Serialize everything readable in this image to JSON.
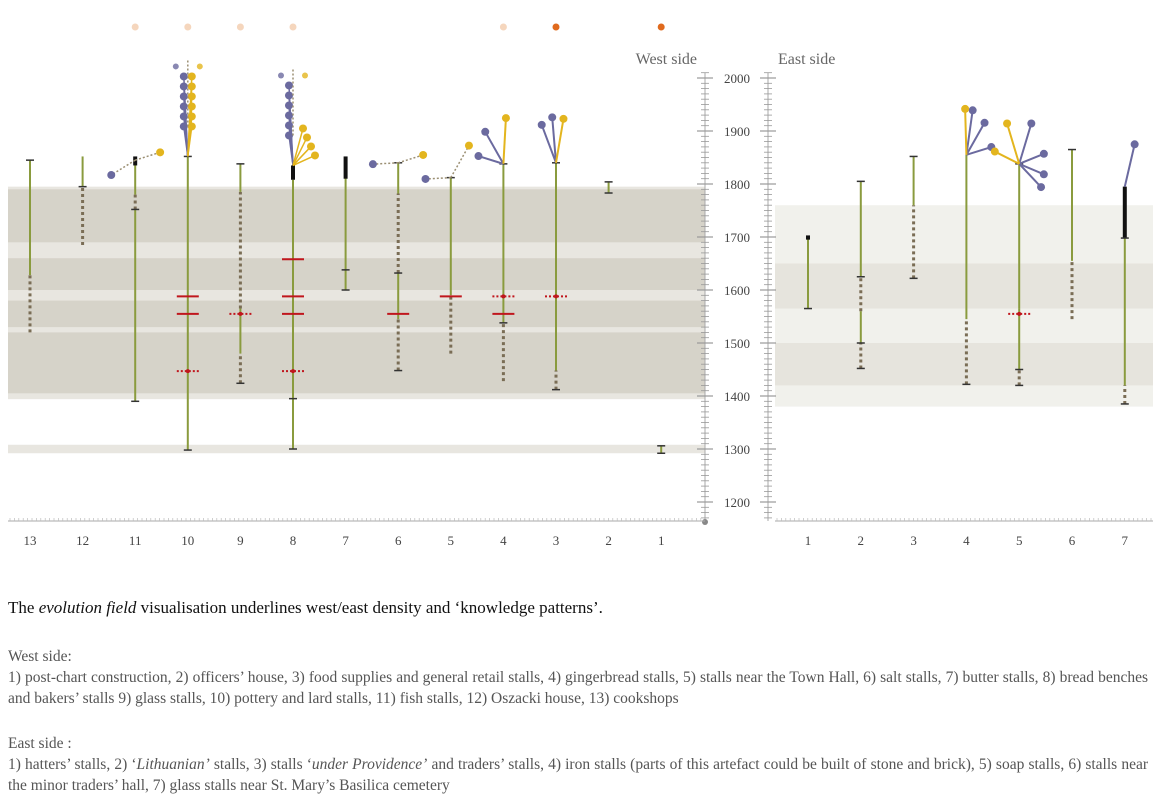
{
  "chart_data": {
    "type": "timeline",
    "y_axis": {
      "ticks": [
        2000,
        1900,
        1800,
        1700,
        1600,
        1500,
        1400,
        1300,
        1200
      ],
      "range": [
        1160,
        2010
      ]
    },
    "panels": [
      {
        "id": "west",
        "title": "West side",
        "columns": [
          "13",
          "12",
          "11",
          "10",
          "9",
          "8",
          "7",
          "6",
          "5",
          "4",
          "3",
          "2",
          "1"
        ],
        "bands": [
          {
            "from": 1394,
            "to": 1405,
            "shade": "light"
          },
          {
            "from": 1405,
            "to": 1795,
            "shade": "light"
          },
          {
            "from": 1405,
            "to": 1520,
            "shade": "mid"
          },
          {
            "from": 1530,
            "to": 1580,
            "shade": "mid"
          },
          {
            "from": 1600,
            "to": 1660,
            "shade": "mid"
          },
          {
            "from": 1690,
            "to": 1790,
            "shade": "mid"
          },
          {
            "from": 1292,
            "to": 1308,
            "shade": "light"
          }
        ],
        "items": [
          {
            "col": "13",
            "solid": [
              [
                1628,
                1845
              ]
            ],
            "dotted": [
              [
                1520,
                1628
              ]
            ],
            "caps": [
              1845
            ],
            "thick": []
          },
          {
            "col": "12",
            "solid": [
              [
                1795,
                1852
              ]
            ],
            "dotted": [
              [
                1685,
                1795
              ]
            ],
            "caps": [
              1795
            ],
            "thick": []
          },
          {
            "col": "11",
            "solid": [
              [
                1390,
                1752
              ],
              [
                1780,
                1845
              ]
            ],
            "dotted": [
              [
                1752,
                1780
              ]
            ],
            "caps": [
              1390,
              1752
            ],
            "thick": [
              [
                1835,
                1852
              ]
            ]
          },
          {
            "col": "10",
            "solid": [
              [
                1298,
                1852
              ]
            ],
            "dotted": [],
            "caps": [
              1298,
              1852
            ],
            "thick": [],
            "red": [
              1588,
              1555
            ],
            "red_dotted": [
              1447
            ]
          },
          {
            "col": "9",
            "solid": [
              [
                1480,
                1565
              ],
              [
                1785,
                1838
              ]
            ],
            "dotted": [
              [
                1424,
                1480
              ],
              [
                1565,
                1785
              ]
            ],
            "caps": [
              1424,
              1838
            ],
            "thick": [],
            "red_dotted": [
              1555
            ]
          },
          {
            "col": "8",
            "solid": [
              [
                1300,
                1395
              ],
              [
                1395,
                1808
              ]
            ],
            "dotted": [],
            "caps": [
              1300,
              1395
            ],
            "thick": [
              [
                1808,
                1835
              ]
            ],
            "red": [
              1658,
              1588,
              1555
            ],
            "red_dotted": [
              1447
            ]
          },
          {
            "col": "7",
            "solid": [
              [
                1600,
                1812
              ]
            ],
            "dotted": [],
            "caps": [
              1600,
              1638
            ],
            "thick": [
              [
                1810,
                1852
              ]
            ]
          },
          {
            "col": "6",
            "solid": [
              [
                1545,
                1632
              ],
              [
                1782,
                1840
              ]
            ],
            "dotted": [
              [
                1448,
                1545
              ],
              [
                1632,
                1782
              ]
            ],
            "caps": [
              1448,
              1632,
              1840
            ],
            "thick": [],
            "red": [
              1555
            ]
          },
          {
            "col": "5",
            "solid": [
              [
                1590,
                1812
              ]
            ],
            "dotted": [
              [
                1480,
                1590
              ]
            ],
            "caps": [
              1812
            ],
            "thick": [],
            "red": [
              1588
            ]
          },
          {
            "col": "4",
            "solid": [
              [
                1538,
                1838
              ]
            ],
            "dotted": [
              [
                1428,
                1538
              ]
            ],
            "caps": [
              1538,
              1838
            ],
            "thick": [],
            "red": [
              1555
            ],
            "red_dotted": [
              1588
            ]
          },
          {
            "col": "3",
            "solid": [
              [
                1448,
                1840
              ]
            ],
            "dotted": [
              [
                1412,
                1448
              ]
            ],
            "caps": [
              1412,
              1840
            ],
            "thick": [],
            "red_dotted": [
              1588
            ]
          },
          {
            "col": "2",
            "solid": [
              [
                1783,
                1804
              ]
            ],
            "dotted": [],
            "caps": [
              1783,
              1804
            ],
            "thick": []
          },
          {
            "col": "1",
            "solid": [
              [
                1292,
                1306
              ]
            ],
            "dotted": [],
            "caps": [
              1292,
              1306
            ],
            "thick": []
          }
        ],
        "top_dots": [
          {
            "col": "11",
            "color": "#f5d6bd"
          },
          {
            "col": "10",
            "color": "#f5d6bd"
          },
          {
            "col": "9",
            "color": "#f5d6bd"
          },
          {
            "col": "8",
            "color": "#f5d6bd"
          },
          {
            "col": "4",
            "color": "#f5d6bd"
          },
          {
            "col": "3",
            "color": "#e06a1d"
          },
          {
            "col": "1",
            "color": "#e06a1d"
          }
        ],
        "fans": [
          {
            "col": "11",
            "base": 1845,
            "dotted": true,
            "purple": [
              -1.9
            ],
            "yellow": [
              1.4
            ]
          },
          {
            "col": "10",
            "base": 1852,
            "purple": [
              -0.9,
              -0.6,
              -0.45,
              -0.35,
              -0.3,
              -0.25
            ],
            "yellow": [
              0.15,
              0.25,
              0.3,
              0.35,
              0.4,
              0.5
            ],
            "top_dotted": true
          },
          {
            "col": "8",
            "base": 1835,
            "purple": [
              -1.3,
              -0.9,
              -0.65,
              -0.5,
              -0.4,
              -0.32
            ],
            "yellow": [
              0.5,
              0.8,
              1.1,
              1.5
            ],
            "top_dotted": true
          },
          {
            "col": "6",
            "base": 1840,
            "dotted": true,
            "purple": [
              -1.6
            ],
            "yellow": [
              1.4
            ]
          },
          {
            "col": "5",
            "base": 1812,
            "dotted": true,
            "purple": [
              -1.6
            ],
            "yellow": [
              0.8
            ]
          },
          {
            "col": "4",
            "base": 1838,
            "purple": [
              -1.4,
              -0.8
            ],
            "yellow": [
              0.1
            ]
          },
          {
            "col": "3",
            "base": 1840,
            "purple": [
              -0.6,
              -0.15
            ],
            "yellow": [
              0.3
            ]
          }
        ]
      },
      {
        "id": "east",
        "title": "East side",
        "columns": [
          "1",
          "2",
          "3",
          "4",
          "5",
          "6",
          "7"
        ],
        "bands": [
          {
            "from": 1380,
            "to": 1760,
            "shade": "faint"
          },
          {
            "from": 1420,
            "to": 1500,
            "shade": "light"
          },
          {
            "from": 1565,
            "to": 1650,
            "shade": "light"
          }
        ],
        "items": [
          {
            "col": "1",
            "solid": [
              [
                1565,
                1700
              ]
            ],
            "dotted": [],
            "caps": [
              1565
            ],
            "thick": [
              [
                1695,
                1703
              ]
            ]
          },
          {
            "col": "2",
            "solid": [
              [
                1500,
                1560
              ],
              [
                1625,
                1805
              ]
            ],
            "dotted": [
              [
                1452,
                1500
              ],
              [
                1560,
                1625
              ]
            ],
            "caps": [
              1452,
              1500,
              1625,
              1805
            ],
            "thick": []
          },
          {
            "col": "3",
            "solid": [
              [
                1760,
                1852
              ]
            ],
            "dotted": [
              [
                1622,
                1760
              ]
            ],
            "caps": [
              1622,
              1852
            ],
            "thick": []
          },
          {
            "col": "4",
            "solid": [
              [
                1545,
                1855
              ]
            ],
            "dotted": [
              [
                1422,
                1545
              ]
            ],
            "caps": [
              1422
            ],
            "thick": []
          },
          {
            "col": "5",
            "solid": [
              [
                1450,
                1565
              ],
              [
                1565,
                1838
              ]
            ],
            "dotted": [
              [
                1420,
                1450
              ]
            ],
            "caps": [
              1420,
              1450,
              1838
            ],
            "thick": [],
            "red_dotted": [
              1555
            ]
          },
          {
            "col": "6",
            "solid": [
              [
                1655,
                1865
              ]
            ],
            "dotted": [
              [
                1545,
                1655
              ]
            ],
            "caps": [
              1865
            ],
            "thick": []
          },
          {
            "col": "7",
            "solid": [
              [
                1420,
                1698
              ]
            ],
            "dotted": [
              [
                1385,
                1420
              ]
            ],
            "caps": [
              1385,
              1698
            ],
            "thick": [
              [
                1698,
                1795
              ]
            ]
          }
        ],
        "fans": [
          {
            "col": "4",
            "base": 1855,
            "purple": [
              1.4,
              0.8,
              0.25
            ],
            "yellow": [
              -0.05
            ]
          },
          {
            "col": "5",
            "base": 1838,
            "purple": [
              2.1,
              1.8,
              1.35,
              0.5
            ],
            "yellow": [
              -1.3,
              -0.5
            ]
          },
          {
            "col": "7",
            "base": 1795,
            "purple": [
              0.4
            ],
            "yellow": []
          }
        ]
      }
    ]
  },
  "caption": {
    "prefix": "The ",
    "emphasis": "evolution field",
    "suffix": " visualisation underlines west/east density and ‘knowledge patterns’."
  },
  "west_legend": {
    "heading": "West side:",
    "text": "1) post-chart construction, 2) officers’ house, 3) food supplies and general retail stalls, 4) gingerbread stalls, 5) stalls near the Town Hall, 6) salt stalls, 7) butter stalls, 8) bread benches and bakers’ stalls 9) glass stalls, 10) pottery and lard stalls, 11) fish stalls, 12) Oszacki house, 13) cookshops"
  },
  "east_legend": {
    "heading": "East side :",
    "t1": "1) hatters’ stalls, 2) ‘",
    "e1": "Lithuanian’",
    "t2": " stalls, 3) stalls ‘",
    "e2": "under Providence’",
    "t3": " and traders’ stalls, 4) iron stalls (parts of this artefact could be built of stone and brick), 5) soap stalls, 6) stalls near the minor traders’ hall, 7) glass stalls near St. Mary’s Basilica cemetery"
  },
  "colors": {
    "green": "#8a9b3e",
    "dotted": "#7a6d55",
    "red": "#c0161d",
    "purple": "#6b6a9f",
    "yellow": "#e3b51e",
    "band_mid": "#d2cfc4",
    "band_light": "#e4e2da",
    "band_faint": "#efeee9"
  }
}
